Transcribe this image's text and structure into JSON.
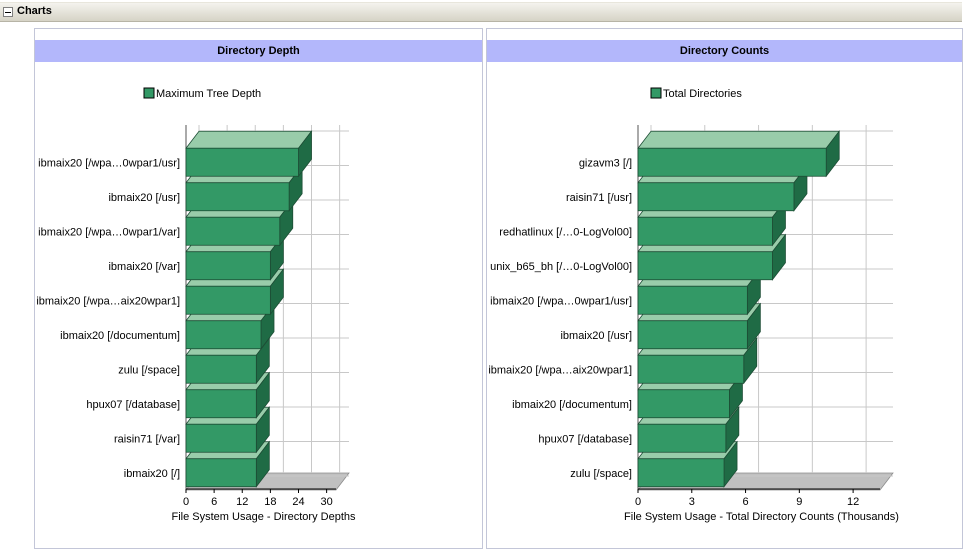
{
  "section": {
    "title": "Charts"
  },
  "colors": {
    "bar_front": "#339966",
    "bar_top": "#99ccaa",
    "bar_side": "#1f6b45",
    "bar_outline": "#1d4d35",
    "grid": "#c8c8c8",
    "floor": "#c0c0c0",
    "wall": "#99ccaa",
    "title_band": "#b3b7fb"
  },
  "chart_data": [
    {
      "type": "bar",
      "orientation": "horizontal",
      "title": "Directory Depth",
      "legend": [
        "Maximum Tree Depth"
      ],
      "legend_position": "top-center",
      "xlabel": "File System Usage - Directory Depths",
      "ylabel": "",
      "xlim": [
        0,
        32
      ],
      "xticks": [
        0,
        6,
        12,
        18,
        24,
        30
      ],
      "grid": true,
      "categories": [
        "ibmaix20 [/wpa…0wpar1/usr]",
        "ibmaix20 [/usr]",
        "ibmaix20 [/wpa…0wpar1/var]",
        "ibmaix20 [/var]",
        "ibmaix20 [/wpa…aix20wpar1]",
        "ibmaix20 [/documentum]",
        "zulu [/space]",
        "hpux07 [/database]",
        "raisin71 [/var]",
        "ibmaix20 [/]"
      ],
      "series": [
        {
          "name": "Maximum Tree Depth",
          "values": [
            24,
            22,
            20,
            18,
            18,
            16,
            15,
            15,
            15,
            15
          ]
        }
      ]
    },
    {
      "type": "bar",
      "orientation": "horizontal",
      "title": "Directory Counts",
      "legend": [
        "Total Directories"
      ],
      "legend_position": "top-center",
      "xlabel": "File System Usage - Total Directory Counts (Thousands)",
      "ylabel": "",
      "xlim": [
        0,
        13.5
      ],
      "xticks": [
        0,
        3,
        6,
        9,
        12
      ],
      "grid": true,
      "categories": [
        "gizavm3 [/]",
        "raisin71 [/usr]",
        "redhatlinux [/…0-LogVol00]",
        "unix_b65_bh [/…0-LogVol00]",
        "ibmaix20 [/wpa…0wpar1/usr]",
        "ibmaix20 [/usr]",
        "ibmaix20 [/wpa…aix20wpar1]",
        "ibmaix20 [/documentum]",
        "hpux07 [/database]",
        "zulu [/space]"
      ],
      "series": [
        {
          "name": "Total Directories",
          "values": [
            10.5,
            8.7,
            7.5,
            7.5,
            6.1,
            6.1,
            5.9,
            5.1,
            4.9,
            4.8
          ]
        }
      ]
    }
  ]
}
